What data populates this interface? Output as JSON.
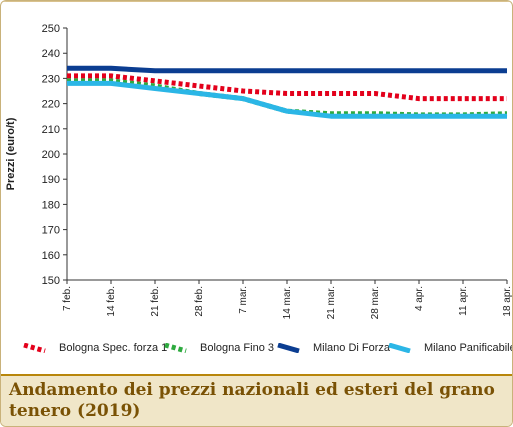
{
  "caption": "Andamento dei prezzi nazionali ed esteri del grano tenero (2019)",
  "chart_data": {
    "type": "line",
    "title": "",
    "xlabel": "",
    "ylabel": "Prezzi (euro/t)",
    "ylim": [
      150,
      250
    ],
    "yticks": [
      "150",
      "160",
      "170",
      "180",
      "190",
      "200",
      "210",
      "220",
      "230",
      "240",
      "250"
    ],
    "categories": [
      "7 feb.",
      "14 feb.",
      "21 feb.",
      "28 feb.",
      "7 mar.",
      "14 mar.",
      "21 mar.",
      "28 mar.",
      "4 apr.",
      "11 apr.",
      "18 apr."
    ],
    "grid": false,
    "legend": "bottom",
    "series": [
      {
        "name": "Bologna Spec. forza 1",
        "color": "#e3001b",
        "style": "dotted",
        "values": [
          231,
          231,
          229,
          227,
          225,
          224,
          224,
          224,
          222,
          222,
          222
        ]
      },
      {
        "name": "Bologna Fino 3",
        "color": "#2eaa3f",
        "style": "dotted",
        "values": [
          229,
          229,
          227,
          224,
          222,
          217,
          216,
          216,
          215.5,
          215.5,
          216
        ]
      },
      {
        "name": "Milano Di Forza",
        "color": "#0b3d91",
        "style": "solid",
        "values": [
          234,
          234,
          233,
          233,
          233,
          233,
          233,
          233,
          233,
          233,
          233
        ]
      },
      {
        "name": "Milano Panificabile",
        "color": "#2bb6e6",
        "style": "solid",
        "values": [
          228,
          228,
          226,
          224,
          222,
          217,
          215,
          215,
          215,
          215,
          215
        ]
      }
    ]
  }
}
